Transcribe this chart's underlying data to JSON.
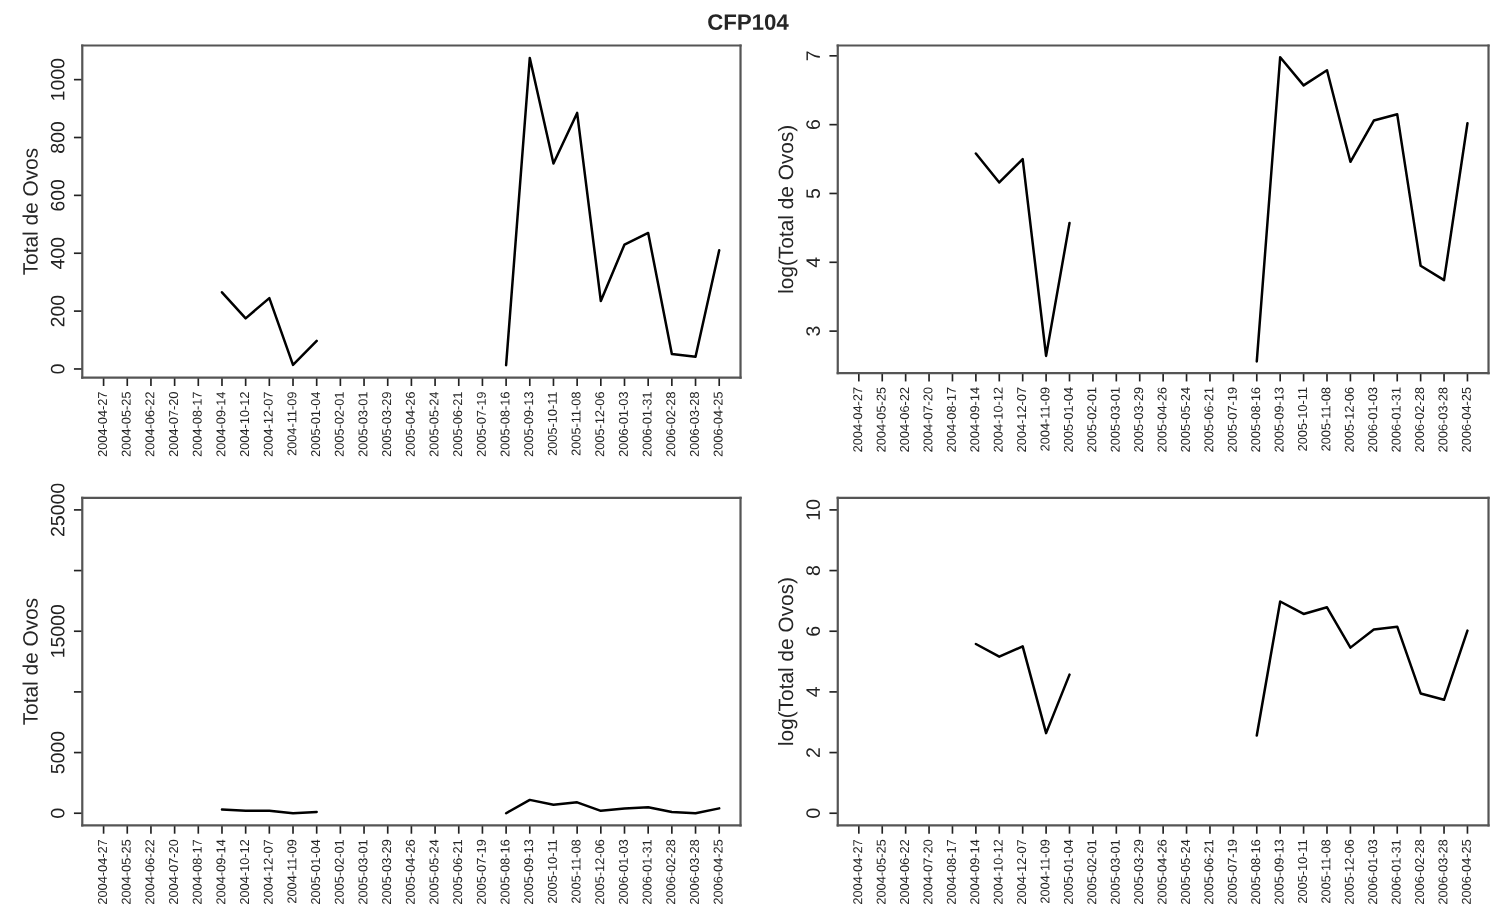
{
  "chart_data": [
    {
      "type": "line",
      "title": "CFP104",
      "ylabel": "Total de Ovos",
      "categories": [
        "2004-04-27",
        "2004-05-25",
        "2004-06-22",
        "2004-07-20",
        "2004-08-17",
        "2004-09-14",
        "2004-10-12",
        "2004-12-07",
        "2004-11-09",
        "2005-01-04",
        "2005-02-01",
        "2005-03-01",
        "2005-03-29",
        "2005-04-26",
        "2005-05-24",
        "2005-06-21",
        "2005-07-19",
        "2005-08-16",
        "2005-09-13",
        "2005-10-11",
        "2005-11-08",
        "2005-12-06",
        "2006-01-03",
        "2006-01-31",
        "2006-02-28",
        "2006-03-28",
        "2006-04-25"
      ],
      "series": [
        {
          "color": "#000000",
          "values": [
            null,
            null,
            null,
            null,
            null,
            265,
            175,
            245,
            14,
            97,
            null,
            null,
            null,
            null,
            null,
            null,
            null,
            13,
            1075,
            710,
            885,
            235,
            430,
            470,
            52,
            42,
            410
          ]
        }
      ],
      "ylim": [
        -30,
        1118
      ],
      "yticks": [
        0,
        200,
        400,
        600,
        800,
        1000
      ],
      "grid": false,
      "legend": false
    },
    {
      "type": "line",
      "ylabel": "log(Total de Ovos)",
      "categories": [
        "2004-04-27",
        "2004-05-25",
        "2004-06-22",
        "2004-07-20",
        "2004-08-17",
        "2004-09-14",
        "2004-10-12",
        "2004-12-07",
        "2004-11-09",
        "2005-01-04",
        "2005-02-01",
        "2005-03-01",
        "2005-03-29",
        "2005-04-26",
        "2005-05-24",
        "2005-06-21",
        "2005-07-19",
        "2005-08-16",
        "2005-09-13",
        "2005-10-11",
        "2005-11-08",
        "2005-12-06",
        "2006-01-03",
        "2006-01-31",
        "2006-02-28",
        "2006-03-28",
        "2006-04-25"
      ],
      "series": [
        {
          "color": "#000000",
          "values": [
            null,
            null,
            null,
            null,
            null,
            5.58,
            5.16,
            5.5,
            2.64,
            4.57,
            null,
            null,
            null,
            null,
            null,
            null,
            null,
            2.56,
            6.98,
            6.57,
            6.79,
            5.46,
            6.06,
            6.15,
            3.95,
            3.74,
            6.02
          ]
        }
      ],
      "ylim": [
        2.39,
        7.15
      ],
      "yticks": [
        3,
        4,
        5,
        6,
        7
      ],
      "grid": false,
      "legend": false
    },
    {
      "type": "line",
      "ylabel": "Total de Ovos",
      "categories": [
        "2004-04-27",
        "2004-05-25",
        "2004-06-22",
        "2004-07-20",
        "2004-08-17",
        "2004-09-14",
        "2004-10-12",
        "2004-12-07",
        "2004-11-09",
        "2005-01-04",
        "2005-02-01",
        "2005-03-01",
        "2005-03-29",
        "2005-04-26",
        "2005-05-24",
        "2005-06-21",
        "2005-07-19",
        "2005-08-16",
        "2005-09-13",
        "2005-10-11",
        "2005-11-08",
        "2005-12-06",
        "2006-01-03",
        "2006-01-31",
        "2006-02-28",
        "2006-03-28",
        "2006-04-25"
      ],
      "series": [
        {
          "color": "#000000",
          "values": [
            null,
            null,
            null,
            null,
            null,
            300,
            200,
            200,
            0,
            100,
            null,
            null,
            null,
            null,
            null,
            null,
            null,
            0,
            1100,
            700,
            900,
            200,
            400,
            500,
            100,
            0,
            400
          ]
        }
      ],
      "ylim": [
        -1000,
        26000
      ],
      "yticks": [
        0,
        5000,
        {
          "value": 10000,
          "label": null
        },
        15000,
        {
          "value": 20000,
          "label": null
        },
        25000
      ],
      "grid": false,
      "legend": false
    },
    {
      "type": "line",
      "ylabel": "log(Total de Ovos)",
      "categories": [
        "2004-04-27",
        "2004-05-25",
        "2004-06-22",
        "2004-07-20",
        "2004-08-17",
        "2004-09-14",
        "2004-10-12",
        "2004-12-07",
        "2004-11-09",
        "2005-01-04",
        "2005-02-01",
        "2005-03-01",
        "2005-03-29",
        "2005-04-26",
        "2005-05-24",
        "2005-06-21",
        "2005-07-19",
        "2005-08-16",
        "2005-09-13",
        "2005-10-11",
        "2005-11-08",
        "2005-12-06",
        "2006-01-03",
        "2006-01-31",
        "2006-02-28",
        "2006-03-28",
        "2006-04-25"
      ],
      "series": [
        {
          "color": "#000000",
          "values": [
            null,
            null,
            null,
            null,
            null,
            5.58,
            5.16,
            5.5,
            2.64,
            4.57,
            null,
            null,
            null,
            null,
            null,
            null,
            null,
            2.56,
            6.98,
            6.57,
            6.79,
            5.46,
            6.06,
            6.15,
            3.95,
            3.74,
            6.02
          ]
        }
      ],
      "ylim": [
        -0.4,
        10.4
      ],
      "yticks": [
        0,
        2,
        4,
        6,
        8,
        10
      ],
      "grid": false,
      "legend": false
    }
  ]
}
